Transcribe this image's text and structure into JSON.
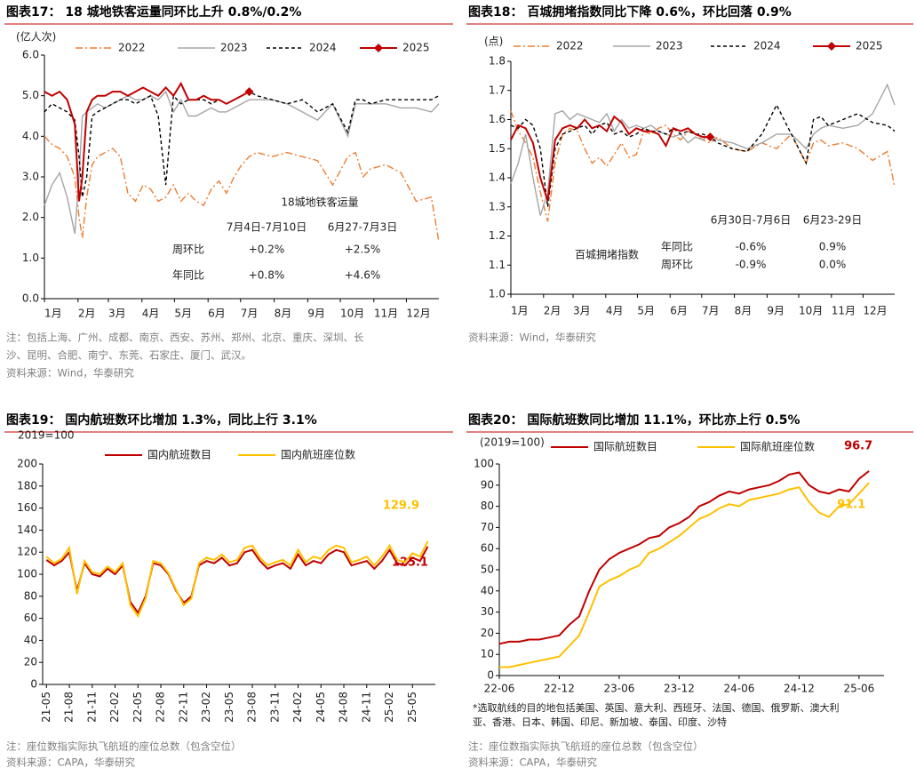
{
  "chart_data": [
    {
      "type": "line",
      "title": "图表17： 18 城地铁客运量同环比上升 0.8%/0.2%",
      "y_unit": "(亿人次)",
      "x": [
        1,
        8,
        15,
        22,
        29,
        33,
        36,
        40,
        45,
        50,
        57,
        64,
        71,
        78,
        85,
        92,
        99,
        106,
        113,
        120,
        127,
        134,
        141,
        148,
        155,
        162,
        169,
        176,
        183,
        190,
        197,
        211,
        225,
        239,
        253,
        267,
        281,
        288,
        295,
        302,
        316,
        330,
        344,
        358,
        365
      ],
      "xlim": [
        1,
        365
      ],
      "xticks": [
        {
          "value": 1,
          "label": "1月"
        },
        {
          "value": 32,
          "label": "2月"
        },
        {
          "value": 60,
          "label": "3月"
        },
        {
          "value": 91,
          "label": "4月"
        },
        {
          "value": 121,
          "label": "5月"
        },
        {
          "value": 152,
          "label": "6月"
        },
        {
          "value": 182,
          "label": "7月"
        },
        {
          "value": 213,
          "label": "8月"
        },
        {
          "value": 244,
          "label": "9月"
        },
        {
          "value": 274,
          "label": "10月"
        },
        {
          "value": 305,
          "label": "11月"
        },
        {
          "value": 335,
          "label": "12月"
        }
      ],
      "ylim": [
        0,
        6
      ],
      "yticks": [
        {
          "value": 0,
          "label": "0.0"
        },
        {
          "value": 1,
          "label": "1.0"
        },
        {
          "value": 2,
          "label": "2.0"
        },
        {
          "value": 3,
          "label": "3.0"
        },
        {
          "value": 4,
          "label": "4.0"
        },
        {
          "value": 5,
          "label": "5.0"
        },
        {
          "value": 6,
          "label": "6.0"
        }
      ],
      "series": [
        {
          "name": "2022",
          "color": "#ED7D31",
          "dash": "dash-dot",
          "values": [
            4.0,
            3.8,
            3.7,
            3.5,
            3.0,
            2.0,
            1.5,
            2.5,
            3.3,
            3.5,
            3.6,
            3.7,
            3.5,
            2.6,
            2.4,
            2.8,
            2.7,
            2.4,
            2.5,
            2.8,
            2.4,
            2.6,
            2.4,
            2.3,
            2.7,
            2.9,
            2.6,
            3.0,
            3.3,
            3.5,
            3.6,
            3.5,
            3.6,
            3.5,
            3.4,
            2.8,
            3.5,
            3.6,
            3.0,
            3.2,
            3.3,
            3.1,
            2.4,
            2.5,
            1.4
          ]
        },
        {
          "name": "2023",
          "color": "#A5A5A5",
          "dash": "solid",
          "values": [
            2.3,
            2.8,
            3.1,
            2.5,
            1.6,
            3.0,
            4.5,
            4.6,
            4.7,
            4.8,
            4.7,
            4.8,
            4.9,
            5.0,
            4.9,
            4.9,
            5.0,
            4.9,
            5.1,
            4.6,
            4.9,
            4.5,
            4.5,
            4.6,
            4.7,
            4.6,
            4.6,
            4.7,
            4.8,
            4.9,
            4.9,
            4.9,
            4.8,
            4.6,
            4.4,
            4.8,
            4.0,
            4.8,
            4.8,
            4.8,
            4.8,
            4.7,
            4.7,
            4.6,
            4.8
          ]
        },
        {
          "name": "2024",
          "color": "#000000",
          "dash": "dash",
          "values": [
            4.6,
            4.8,
            4.7,
            4.6,
            4.4,
            3.5,
            2.5,
            3.0,
            4.5,
            4.6,
            4.7,
            4.8,
            4.9,
            4.9,
            4.8,
            4.9,
            5.0,
            4.5,
            2.8,
            5.0,
            4.8,
            4.9,
            4.9,
            4.9,
            4.8,
            4.9,
            4.8,
            4.9,
            5.0,
            5.1,
            5.0,
            4.9,
            4.8,
            4.9,
            4.6,
            4.8,
            4.1,
            4.9,
            4.9,
            4.8,
            4.9,
            4.9,
            4.9,
            4.9,
            5.0
          ]
        },
        {
          "name": "2025",
          "color": "#C00000",
          "dash": "solid",
          "marker": "diamond",
          "values": [
            5.1,
            5.0,
            5.1,
            4.9,
            4.3,
            2.4,
            3.0,
            4.6,
            4.9,
            5.0,
            5.0,
            5.1,
            5.1,
            5.0,
            5.1,
            5.2,
            5.1,
            5.0,
            5.2,
            5.0,
            5.3,
            4.9,
            4.9,
            5.0,
            4.9,
            4.9,
            4.8,
            4.9,
            5.0,
            5.1,
            null,
            null,
            null,
            null,
            null,
            null,
            null,
            null,
            null,
            null,
            null,
            null,
            null,
            null,
            null
          ]
        }
      ],
      "table": {
        "caption": "18城地铁客运量",
        "columns": [
          "7月4日-7月10日",
          "6月27-7月3日"
        ],
        "rows": [
          [
            "周环比",
            "+0.2%",
            "+2.5%"
          ],
          [
            "年同比",
            "+0.8%",
            "+4.6%"
          ]
        ]
      },
      "notes": [
        "注：包括上海、广州、成都、南京、西安、苏州、郑州、北京、重庆、深圳、长",
        "沙、昆明、合肥、南宁、东莞、石家庄、厦门、武汉。"
      ],
      "source": "资料来源：Wind，华泰研究"
    },
    {
      "type": "line",
      "title": "图表18： 百城拥堵指数同比下降 0.6%，环比回落 0.9%",
      "y_unit": "(点)",
      "x": [
        1,
        8,
        15,
        22,
        29,
        36,
        43,
        50,
        57,
        64,
        71,
        78,
        85,
        92,
        99,
        106,
        113,
        120,
        127,
        134,
        141,
        148,
        155,
        162,
        169,
        176,
        183,
        190,
        197,
        211,
        225,
        239,
        253,
        267,
        281,
        288,
        295,
        302,
        316,
        330,
        344,
        358,
        365
      ],
      "xlim": [
        1,
        365
      ],
      "xticks": [
        {
          "value": 1,
          "label": "1月"
        },
        {
          "value": 32,
          "label": "2月"
        },
        {
          "value": 60,
          "label": "3月"
        },
        {
          "value": 91,
          "label": "4月"
        },
        {
          "value": 121,
          "label": "5月"
        },
        {
          "value": 152,
          "label": "6月"
        },
        {
          "value": 182,
          "label": "7月"
        },
        {
          "value": 213,
          "label": "8月"
        },
        {
          "value": 244,
          "label": "9月"
        },
        {
          "value": 274,
          "label": "10月"
        },
        {
          "value": 305,
          "label": "11月"
        },
        {
          "value": 335,
          "label": "12月"
        }
      ],
      "ylim": [
        1.0,
        1.8
      ],
      "yticks": [
        {
          "value": 1.0,
          "label": "1.0"
        },
        1.1,
        1.2,
        1.3,
        1.4,
        1.5,
        1.6,
        1.7,
        1.8
      ],
      "series": [
        {
          "name": "2022",
          "color": "#ED7D31",
          "dash": "dash-dot",
          "values": [
            1.63,
            1.56,
            1.52,
            1.47,
            1.35,
            1.25,
            1.45,
            1.55,
            1.57,
            1.56,
            1.5,
            1.45,
            1.47,
            1.44,
            1.48,
            1.52,
            1.47,
            1.48,
            1.56,
            1.55,
            1.57,
            1.58,
            1.55,
            1.53,
            1.56,
            1.55,
            1.53,
            1.52,
            1.54,
            1.5,
            1.49,
            1.52,
            1.5,
            1.55,
            1.45,
            1.52,
            1.53,
            1.51,
            1.52,
            1.5,
            1.46,
            1.49,
            1.37
          ]
        },
        {
          "name": "2023",
          "color": "#A5A5A5",
          "dash": "solid",
          "values": [
            1.38,
            1.45,
            1.55,
            1.4,
            1.27,
            1.35,
            1.62,
            1.63,
            1.6,
            1.62,
            1.61,
            1.6,
            1.59,
            1.62,
            1.56,
            1.6,
            1.57,
            1.58,
            1.57,
            1.58,
            1.56,
            1.55,
            1.54,
            1.55,
            1.52,
            1.54,
            1.53,
            1.55,
            1.53,
            1.52,
            1.5,
            1.52,
            1.55,
            1.55,
            1.5,
            1.55,
            1.57,
            1.58,
            1.57,
            1.58,
            1.62,
            1.72,
            1.65
          ]
        },
        {
          "name": "2024",
          "color": "#000000",
          "dash": "dash",
          "values": [
            1.58,
            1.57,
            1.6,
            1.58,
            1.5,
            1.3,
            1.5,
            1.55,
            1.56,
            1.57,
            1.58,
            1.55,
            1.58,
            1.59,
            1.55,
            1.56,
            1.54,
            1.55,
            1.57,
            1.56,
            1.56,
            1.55,
            1.57,
            1.55,
            1.56,
            1.55,
            1.55,
            1.54,
            1.52,
            1.5,
            1.49,
            1.55,
            1.65,
            1.55,
            1.45,
            1.6,
            1.61,
            1.58,
            1.6,
            1.62,
            1.59,
            1.58,
            1.56
          ]
        },
        {
          "name": "2025",
          "color": "#C00000",
          "dash": "solid",
          "marker": "diamond",
          "values": [
            1.53,
            1.58,
            1.57,
            1.52,
            1.4,
            1.32,
            1.53,
            1.57,
            1.58,
            1.57,
            1.6,
            1.57,
            1.58,
            1.56,
            1.61,
            1.59,
            1.55,
            1.57,
            1.56,
            1.56,
            1.55,
            1.51,
            1.57,
            1.56,
            1.57,
            1.55,
            1.54,
            1.54,
            null,
            null,
            null,
            null,
            null,
            null,
            null,
            null,
            null,
            null,
            null,
            null,
            null,
            null,
            null
          ]
        }
      ],
      "table": {
        "caption": "百城拥堵指数",
        "columns": [
          "6月30日-7月6日",
          "6月23-29日"
        ],
        "rows": [
          [
            "年同比",
            "-0.6%",
            "0.9%"
          ],
          [
            "周环比",
            "-0.9%",
            "0.0%"
          ]
        ]
      },
      "source": "资料来源：Wind，华泰研究"
    },
    {
      "type": "line",
      "title": "图表19： 国内航班数环比增加 1.3%，同比上行 3.1%",
      "y_unit": "2019=100",
      "x": [
        0,
        1,
        2,
        3,
        4,
        5,
        6,
        7,
        8,
        9,
        10,
        11,
        12,
        13,
        14,
        15,
        16,
        17,
        18,
        19,
        20,
        21,
        22,
        23,
        24,
        25,
        26,
        27,
        28,
        29,
        30,
        31,
        32,
        33,
        34,
        35,
        36,
        37,
        38,
        39,
        40,
        41,
        42,
        43,
        44,
        45,
        46,
        47,
        48,
        49,
        50
      ],
      "xlim": [
        -0.5,
        51
      ],
      "xticks": [
        {
          "value": 0,
          "label": "21-05"
        },
        {
          "value": 3,
          "label": "21-08"
        },
        {
          "value": 6,
          "label": "21-11"
        },
        {
          "value": 9,
          "label": "22-02"
        },
        {
          "value": 12,
          "label": "22-05"
        },
        {
          "value": 15,
          "label": "22-08"
        },
        {
          "value": 18,
          "label": "22-11"
        },
        {
          "value": 21,
          "label": "23-02"
        },
        {
          "value": 24,
          "label": "23-05"
        },
        {
          "value": 27,
          "label": "23-08"
        },
        {
          "value": 30,
          "label": "23-11"
        },
        {
          "value": 33,
          "label": "24-02"
        },
        {
          "value": 36,
          "label": "24-05"
        },
        {
          "value": 39,
          "label": "24-08"
        },
        {
          "value": 42,
          "label": "24-11"
        },
        {
          "value": 45,
          "label": "25-02"
        },
        {
          "value": 48,
          "label": "25-05"
        }
      ],
      "ylim": [
        0,
        200
      ],
      "yticks": [
        0,
        20,
        40,
        60,
        80,
        100,
        120,
        140,
        160,
        180,
        200
      ],
      "series": [
        {
          "name": "国内航班数目",
          "color": "#C00000",
          "dash": "solid",
          "values": [
            113,
            108,
            112,
            120,
            85,
            110,
            100,
            98,
            105,
            100,
            108,
            75,
            65,
            80,
            110,
            108,
            100,
            85,
            74,
            80,
            108,
            112,
            110,
            115,
            108,
            110,
            120,
            122,
            112,
            105,
            108,
            110,
            105,
            118,
            108,
            112,
            110,
            118,
            122,
            120,
            108,
            110,
            112,
            105,
            112,
            122,
            110,
            108,
            115,
            112,
            125.1
          ]
        },
        {
          "name": "国内航班座位数",
          "color": "#FFC000",
          "dash": "solid",
          "values": [
            116,
            110,
            114,
            124,
            82,
            112,
            102,
            100,
            107,
            102,
            110,
            72,
            62,
            78,
            112,
            110,
            101,
            86,
            72,
            78,
            110,
            115,
            113,
            118,
            111,
            113,
            124,
            126,
            115,
            108,
            111,
            113,
            108,
            122,
            111,
            116,
            114,
            122,
            126,
            124,
            111,
            113,
            116,
            108,
            116,
            126,
            113,
            111,
            119,
            116,
            129.9
          ]
        }
      ],
      "notes": [
        "注：座位数指实际执飞航班的座位总数（包含空位）"
      ],
      "source": "资料来源：CAPA，华泰研究"
    },
    {
      "type": "line",
      "title": "图表20： 国际航班数同比增加 11.1%，环比亦上行 0.5%",
      "y_unit": "(2019=100)",
      "x": [
        0,
        1,
        2,
        3,
        4,
        5,
        6,
        7,
        8,
        9,
        10,
        11,
        12,
        13,
        14,
        15,
        16,
        17,
        18,
        19,
        20,
        21,
        22,
        23,
        24,
        25,
        26,
        27,
        28,
        29,
        30,
        31,
        32,
        33,
        34,
        35,
        36,
        37
      ],
      "xlim": [
        0,
        38.5
      ],
      "xticks": [
        {
          "value": 0,
          "label": "22-06"
        },
        {
          "value": 6,
          "label": "22-12"
        },
        {
          "value": 12,
          "label": "23-06"
        },
        {
          "value": 18,
          "label": "23-12"
        },
        {
          "value": 24,
          "label": "24-06"
        },
        {
          "value": 30,
          "label": "24-12"
        },
        {
          "value": 36,
          "label": "25-06"
        }
      ],
      "ylim": [
        0,
        100
      ],
      "yticks": [
        0,
        10,
        20,
        30,
        40,
        50,
        60,
        70,
        80,
        90,
        100
      ],
      "series": [
        {
          "name": "国际航班数目",
          "color": "#C00000",
          "dash": "solid",
          "values": [
            15,
            16,
            16,
            17,
            17,
            18,
            19,
            24,
            28,
            40,
            50,
            55,
            58,
            60,
            62,
            65,
            66,
            70,
            72,
            75,
            80,
            82,
            85,
            87,
            86,
            88,
            89,
            90,
            92,
            95,
            96,
            90,
            87,
            86,
            88,
            87,
            93,
            96.7
          ]
        },
        {
          "name": "国际航班座位数",
          "color": "#FFC000",
          "dash": "solid",
          "values": [
            4,
            4,
            5,
            6,
            7,
            8,
            9,
            14,
            19,
            30,
            42,
            45,
            47,
            50,
            52,
            58,
            60,
            63,
            66,
            70,
            74,
            76,
            79,
            81,
            80,
            83,
            84,
            85,
            86,
            88,
            89,
            82,
            77,
            75,
            80,
            81,
            86,
            91.1
          ]
        }
      ],
      "footnote": [
        "*选取航线的目的地包括美国、英国、意大利、西班牙、法国、德国、俄罗斯、澳大利",
        "亚、香港、日本、韩国、印尼、新加坡、泰国、印度、沙特"
      ],
      "notes": [
        "注：座位数指实际执飞航班的座位总数（包含空位）"
      ],
      "source": "资料来源：CAPA，华泰研究"
    }
  ]
}
